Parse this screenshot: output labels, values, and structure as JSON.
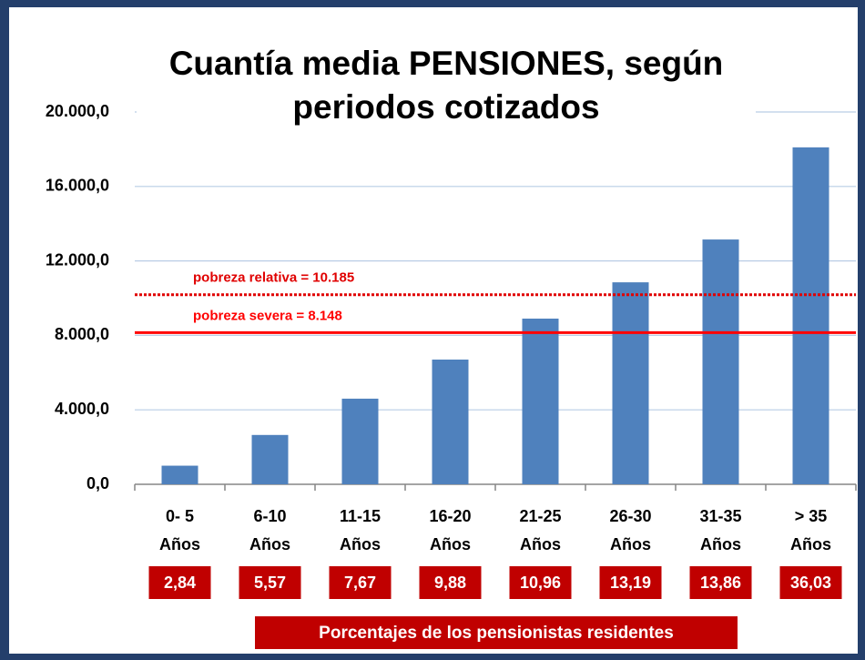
{
  "chart_data": {
    "type": "bar",
    "title": [
      "Cuantía media PENSIONES, según",
      "periodos cotizados"
    ],
    "categories": [
      [
        "0- 5",
        "Años"
      ],
      [
        "6-10",
        "Años"
      ],
      [
        "11-15",
        "Años"
      ],
      [
        "16-20",
        "Años"
      ],
      [
        "21-25",
        "Años"
      ],
      [
        "26-30",
        "Años"
      ],
      [
        "31-35",
        "Años"
      ],
      [
        "> 35",
        "Años"
      ]
    ],
    "values": [
      1000,
      2650,
      4600,
      6700,
      8900,
      10850,
      13150,
      18100
    ],
    "color": "#4f81bd",
    "ylim": [
      0,
      20000
    ],
    "yticks": [
      {
        "value": 0,
        "label": "0,0"
      },
      {
        "value": 4000,
        "label": "4.000,0"
      },
      {
        "value": 8000,
        "label": "8.000,0"
      },
      {
        "value": 12000,
        "label": "12.000,0"
      },
      {
        "value": 16000,
        "label": "16.000,0"
      },
      {
        "value": 20000,
        "label": "20.000,0"
      }
    ],
    "grid": true,
    "reference_lines": [
      {
        "value": 10185,
        "label": "pobreza relativa = 10.185",
        "color": "#e00000",
        "style": "dotted"
      },
      {
        "value": 8148,
        "label": "pobreza severa = 8.148",
        "color": "#ff0000",
        "style": "solid"
      }
    ],
    "percentages": {
      "name": "Porcentajes de los pensionistas residentes",
      "color": "#c00000",
      "values": [
        2.84,
        5.57,
        7.67,
        9.88,
        10.96,
        13.19,
        13.86,
        36.03
      ],
      "value_labels": [
        "2,84",
        "5,57",
        "7,67",
        "9,88",
        "10,96",
        "13,19",
        "13,86",
        "36,03"
      ]
    }
  }
}
